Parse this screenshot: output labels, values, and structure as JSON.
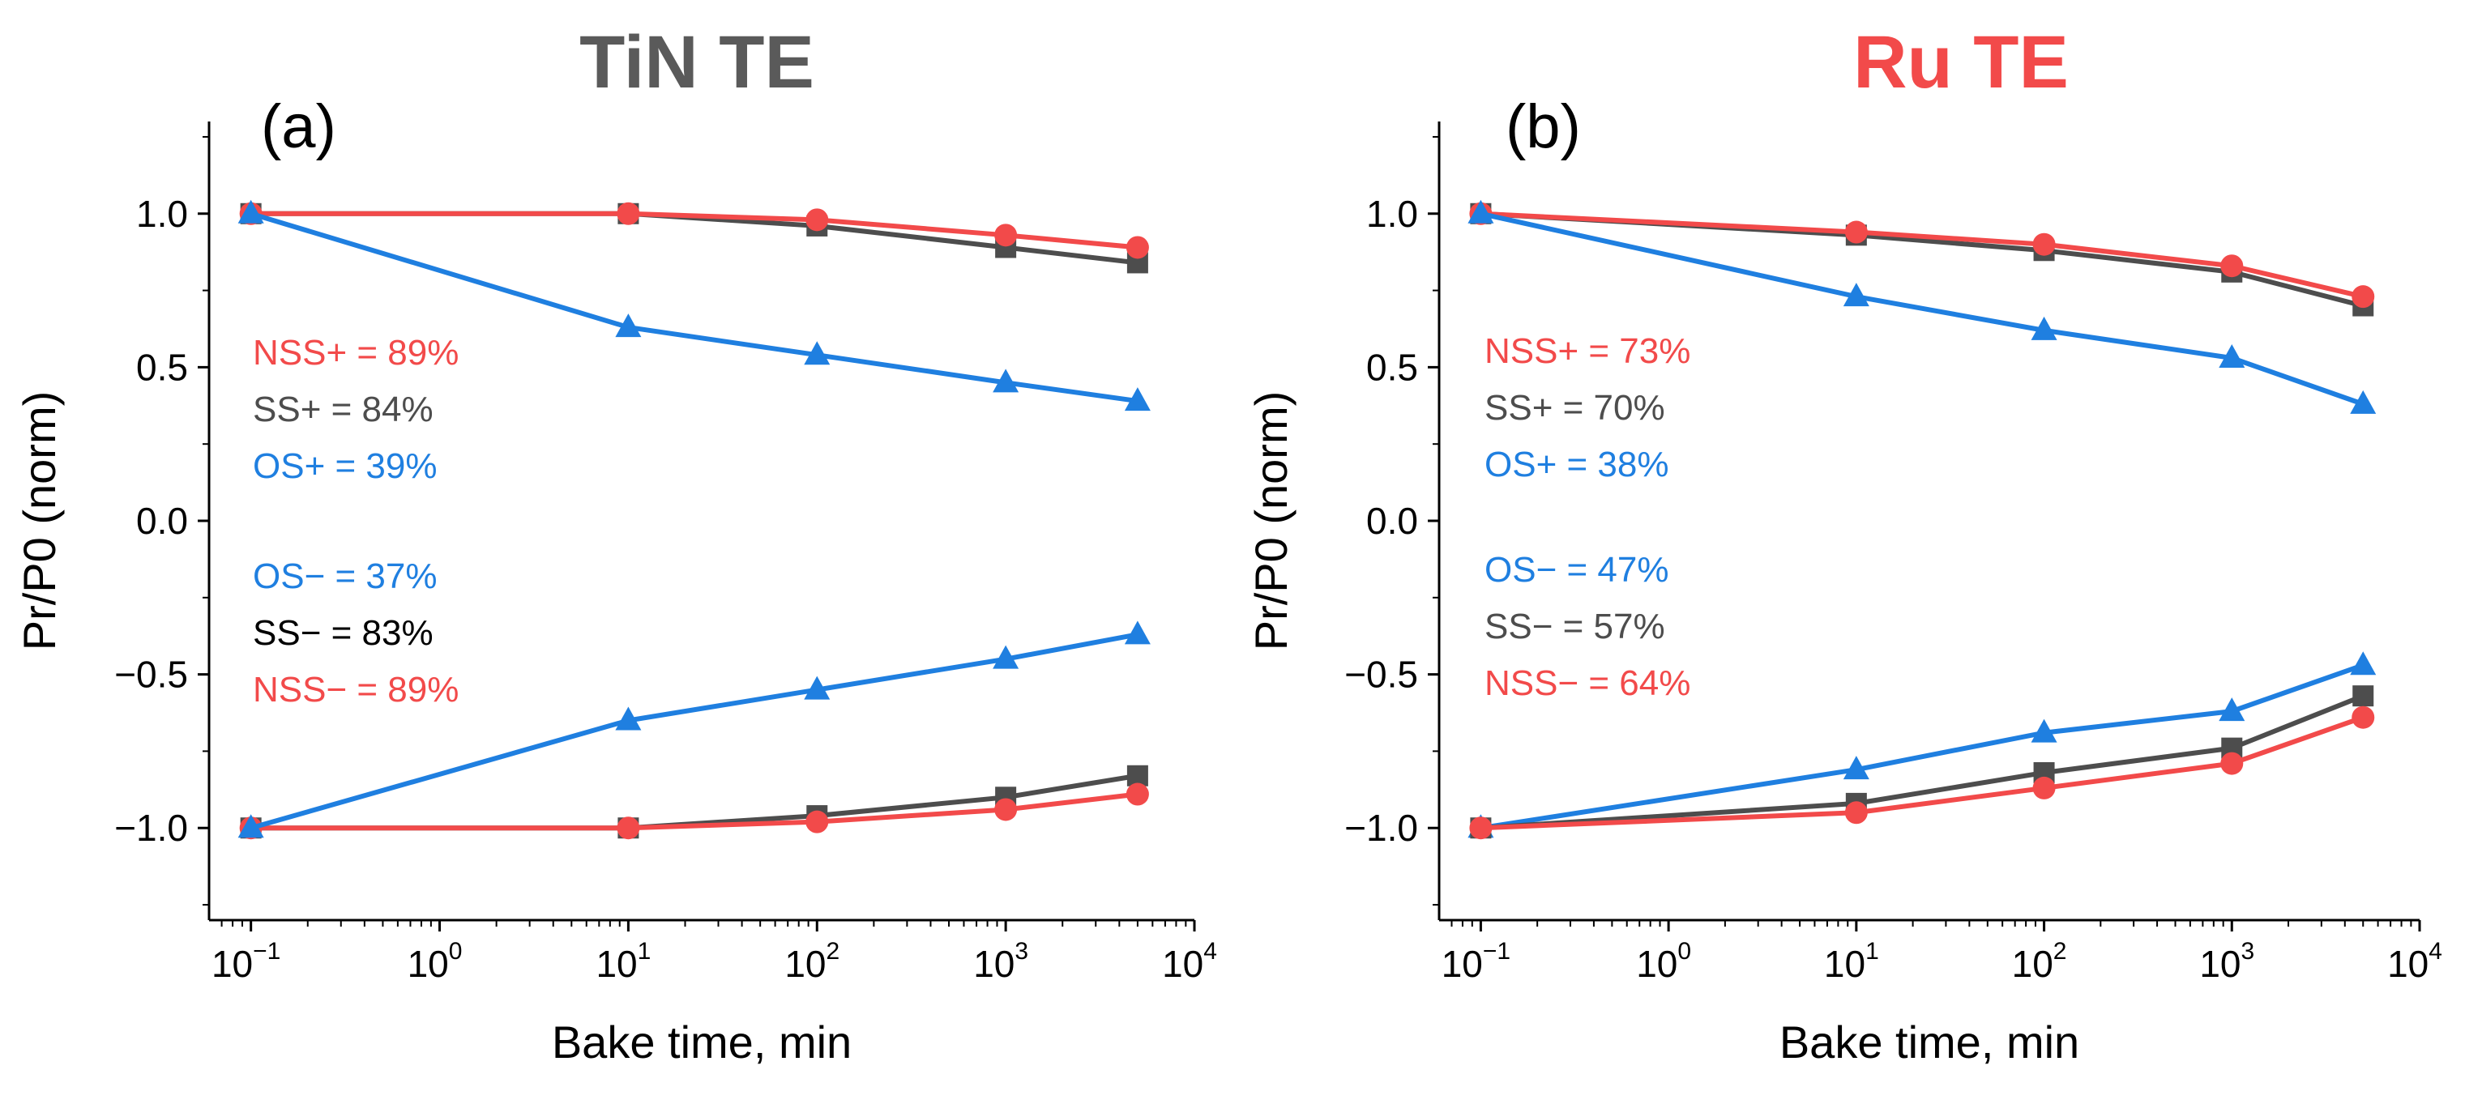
{
  "colors": {
    "black": "#000000",
    "gray": "#4d4d4d",
    "red": "#f24a4a",
    "blue": "#1f7fe0",
    "title_gray": "#5a5a5a",
    "title_red": "#f24a4a"
  },
  "chart_data": [
    {
      "type": "line",
      "panel": "(a)",
      "title": "TiN TE",
      "title_color": "#5a5a5a",
      "xlabel": "Bake time, min",
      "ylabel": "Pr/P0 (norm)",
      "xscale": "log",
      "xlim": [
        0.06,
        10000
      ],
      "ylim": [
        -1.3,
        1.3
      ],
      "yticks": [
        -1.0,
        -0.5,
        0.0,
        0.5,
        1.0
      ],
      "ytick_labels": [
        "−1.0",
        "−0.5",
        "0.0",
        "0.5",
        "1.0"
      ],
      "xticks": [
        0.1,
        1,
        10,
        100,
        1000,
        10000
      ],
      "xtick_exponents": [
        "−1",
        "0",
        "1",
        "2",
        "3",
        "4"
      ],
      "x": [
        0.1,
        10,
        100,
        1000,
        5000
      ],
      "series": [
        {
          "name": "SS+",
          "marker": "square",
          "color": "#4d4d4d",
          "values": [
            1.0,
            1.0,
            0.96,
            0.89,
            0.84
          ]
        },
        {
          "name": "NSS+",
          "marker": "circle",
          "color": "#f24a4a",
          "values": [
            1.0,
            1.0,
            0.98,
            0.93,
            0.89
          ]
        },
        {
          "name": "OS+",
          "marker": "triangle",
          "color": "#1f7fe0",
          "values": [
            1.0,
            0.63,
            0.54,
            0.45,
            0.39
          ]
        },
        {
          "name": "SS−",
          "marker": "square",
          "color": "#4d4d4d",
          "values": [
            -1.0,
            -1.0,
            -0.96,
            -0.9,
            -0.83
          ]
        },
        {
          "name": "NSS−",
          "marker": "circle",
          "color": "#f24a4a",
          "values": [
            -1.0,
            -1.0,
            -0.98,
            -0.94,
            -0.89
          ]
        },
        {
          "name": "OS−",
          "marker": "triangle",
          "color": "#1f7fe0",
          "values": [
            -1.0,
            -0.65,
            -0.55,
            -0.45,
            -0.37
          ]
        }
      ],
      "annotations": [
        {
          "text": "NSS+ = 89%",
          "color": "#f24a4a"
        },
        {
          "text": "SS+ = 84%",
          "color": "#4d4d4d"
        },
        {
          "text": "OS+ = 39%",
          "color": "#1f7fe0"
        },
        {
          "text": "OS− = 37%",
          "color": "#1f7fe0"
        },
        {
          "text": "SS− = 83%",
          "color": "#000000"
        },
        {
          "text": "NSS− = 89%",
          "color": "#f24a4a"
        }
      ]
    },
    {
      "type": "line",
      "panel": "(b)",
      "title": "Ru TE",
      "title_color": "#f24a4a",
      "xlabel": "Bake time, min",
      "ylabel": "Pr/P0 (norm)",
      "xscale": "log",
      "xlim": [
        0.06,
        10000
      ],
      "ylim": [
        -1.3,
        1.3
      ],
      "yticks": [
        -1.0,
        -0.5,
        0.0,
        0.5,
        1.0
      ],
      "ytick_labels": [
        "−1.0",
        "−0.5",
        "0.0",
        "0.5",
        "1.0"
      ],
      "xticks": [
        0.1,
        1,
        10,
        100,
        1000,
        10000
      ],
      "xtick_exponents": [
        "−1",
        "0",
        "1",
        "2",
        "3",
        "4"
      ],
      "x": [
        0.1,
        10,
        100,
        1000,
        5000
      ],
      "series": [
        {
          "name": "SS+",
          "marker": "square",
          "color": "#4d4d4d",
          "values": [
            1.0,
            0.93,
            0.88,
            0.81,
            0.7
          ]
        },
        {
          "name": "NSS+",
          "marker": "circle",
          "color": "#f24a4a",
          "values": [
            1.0,
            0.94,
            0.9,
            0.83,
            0.73
          ]
        },
        {
          "name": "OS+",
          "marker": "triangle",
          "color": "#1f7fe0",
          "values": [
            1.0,
            0.73,
            0.62,
            0.53,
            0.38
          ]
        },
        {
          "name": "OS−",
          "marker": "triangle",
          "color": "#1f7fe0",
          "values": [
            -1.0,
            -0.81,
            -0.69,
            -0.62,
            -0.47
          ]
        },
        {
          "name": "SS−",
          "marker": "square",
          "color": "#4d4d4d",
          "values": [
            -1.0,
            -0.92,
            -0.82,
            -0.74,
            -0.57
          ]
        },
        {
          "name": "NSS−",
          "marker": "circle",
          "color": "#f24a4a",
          "values": [
            -1.0,
            -0.95,
            -0.87,
            -0.79,
            -0.64
          ]
        }
      ],
      "annotations": [
        {
          "text": "NSS+ = 73%",
          "color": "#f24a4a"
        },
        {
          "text": "SS+ = 70%",
          "color": "#4d4d4d"
        },
        {
          "text": "OS+ = 38%",
          "color": "#1f7fe0"
        },
        {
          "text": "OS− = 47%",
          "color": "#1f7fe0"
        },
        {
          "text": "SS− = 57%",
          "color": "#4d4d4d"
        },
        {
          "text": "NSS− = 64%",
          "color": "#f24a4a"
        }
      ]
    }
  ]
}
